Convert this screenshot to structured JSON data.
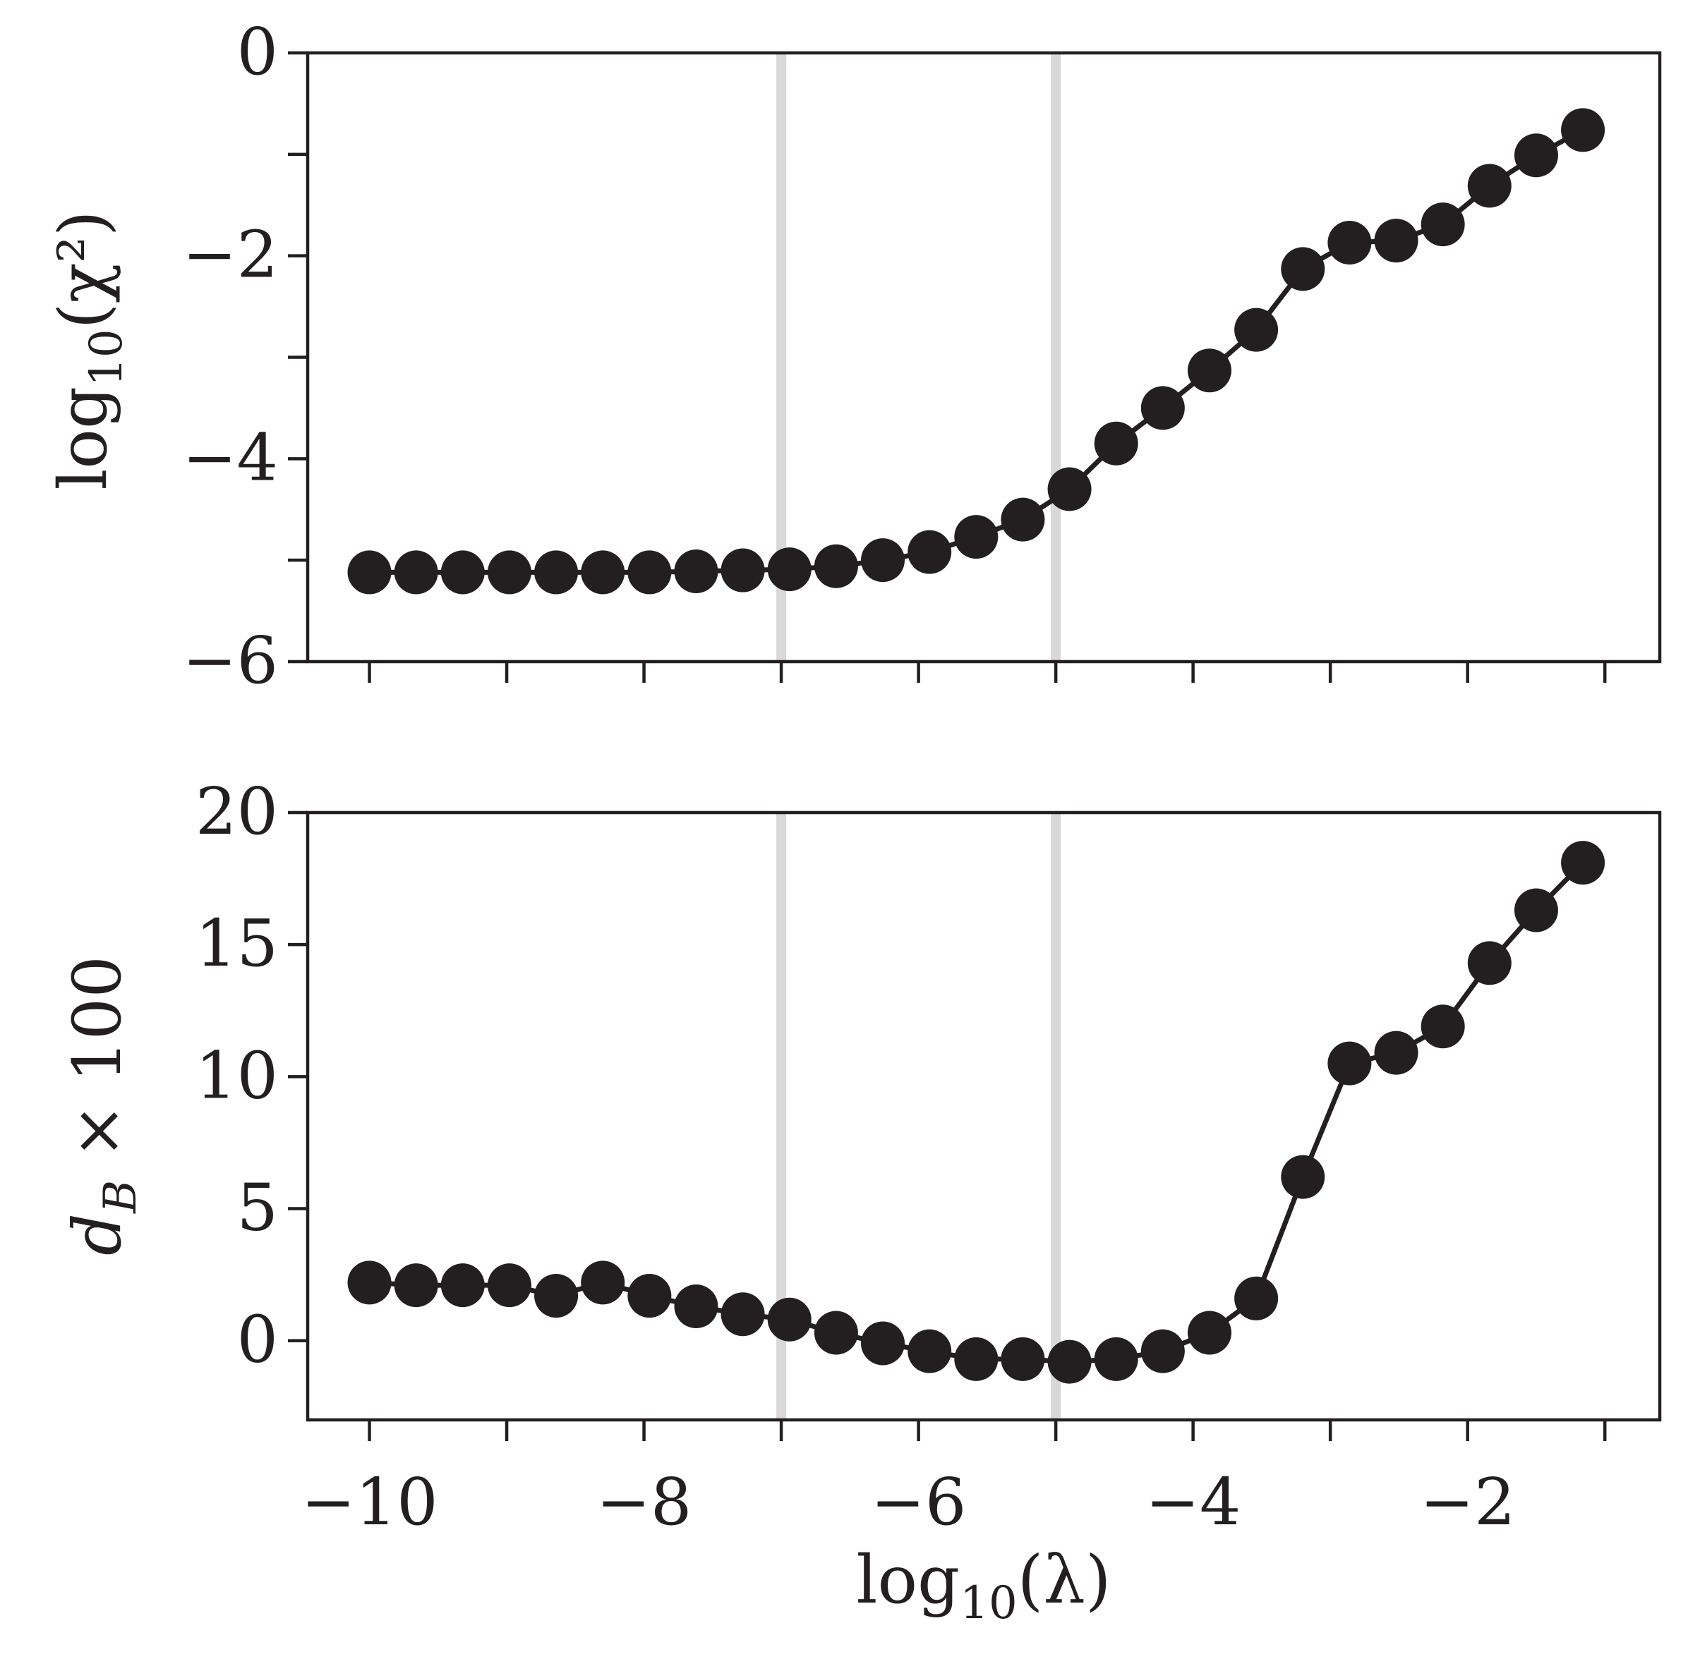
{
  "chart_data": [
    {
      "type": "line",
      "ylabel_base": "log",
      "ylabel_sub": "10",
      "ylabel_arg": "(χ²)",
      "xlim": [
        -10.45,
        -0.6
      ],
      "ylim": [
        -6,
        0
      ],
      "yticks": [
        0,
        -1,
        -2,
        -3,
        -4,
        -5,
        -6
      ],
      "ytick_labels": [
        "0",
        "",
        "−2",
        "",
        "−4",
        "",
        "−6"
      ],
      "xticks": [
        -10,
        -9,
        -8,
        -7,
        -6,
        -5,
        -4,
        -3,
        -2,
        -1
      ],
      "xtick_labels": [
        "",
        "",
        "",
        "",
        "",
        "",
        "",
        "",
        "",
        ""
      ],
      "vlines": [
        -7,
        -5
      ],
      "grid": false,
      "series": [
        {
          "color": "#231f20",
          "x": [
            -10.0,
            -9.66,
            -9.32,
            -8.98,
            -8.64,
            -8.3,
            -7.96,
            -7.62,
            -7.28,
            -6.94,
            -6.6,
            -6.26,
            -5.92,
            -5.58,
            -5.24,
            -4.9,
            -4.56,
            -4.22,
            -3.88,
            -3.54,
            -3.2,
            -2.86,
            -2.52,
            -2.18,
            -1.84,
            -1.5,
            -1.16
          ],
          "y": [
            -5.12,
            -5.12,
            -5.12,
            -5.12,
            -5.12,
            -5.12,
            -5.12,
            -5.11,
            -5.1,
            -5.09,
            -5.06,
            -5.0,
            -4.92,
            -4.77,
            -4.6,
            -4.3,
            -3.85,
            -3.5,
            -3.13,
            -2.73,
            -2.13,
            -1.87,
            -1.85,
            -1.69,
            -1.31,
            -1.01,
            -0.76
          ]
        }
      ]
    },
    {
      "type": "line",
      "ylabel": "d",
      "ylabel_sub": "B",
      "ylabel_tail": " × 100",
      "xlabel_base": "log",
      "xlabel_sub": "10",
      "xlabel_arg": "(λ)",
      "xlim": [
        -10.45,
        -0.6
      ],
      "ylim": [
        -3,
        20
      ],
      "yticks": [
        20,
        15,
        10,
        5,
        0
      ],
      "ytick_labels": [
        "20",
        "15",
        "10",
        "5",
        "0"
      ],
      "xticks": [
        -10,
        -9,
        -8,
        -7,
        -6,
        -5,
        -4,
        -3,
        -2,
        -1
      ],
      "xtick_labels": [
        "−10",
        "",
        "−8",
        "",
        "−6",
        "",
        "−4",
        "",
        "−2",
        ""
      ],
      "vlines": [
        -7,
        -5
      ],
      "grid": false,
      "series": [
        {
          "color": "#231f20",
          "x": [
            -10.0,
            -9.66,
            -9.32,
            -8.98,
            -8.64,
            -8.3,
            -7.96,
            -7.62,
            -7.28,
            -6.94,
            -6.6,
            -6.26,
            -5.92,
            -5.58,
            -5.24,
            -4.9,
            -4.56,
            -4.22,
            -3.88,
            -3.54,
            -3.2,
            -2.86,
            -2.52,
            -2.18,
            -1.84,
            -1.5,
            -1.16
          ],
          "y": [
            2.2,
            2.1,
            2.1,
            2.1,
            1.7,
            2.2,
            1.7,
            1.3,
            1.0,
            0.8,
            0.3,
            -0.1,
            -0.4,
            -0.7,
            -0.7,
            -0.8,
            -0.7,
            -0.4,
            0.3,
            1.6,
            6.2,
            10.5,
            10.9,
            11.9,
            14.3,
            16.3,
            18.1
          ]
        }
      ]
    }
  ]
}
